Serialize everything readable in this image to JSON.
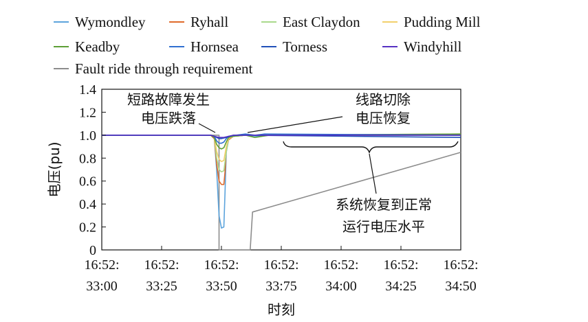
{
  "chart_data": {
    "type": "line",
    "title": "",
    "xlabel": "时刻",
    "ylabel": "电压(pu)",
    "ylim": [
      0,
      1.4
    ],
    "yticks": [
      "0",
      "0.2",
      "0.4",
      "0.6",
      "0.8",
      "1.0",
      "1.2",
      "1.4"
    ],
    "xlim": [
      0,
      1.5
    ],
    "xticks": [
      {
        "line1": "16:52:",
        "line2": "33:00",
        "pos": 0
      },
      {
        "line1": "16:52:",
        "line2": "33:25",
        "pos": 0.25
      },
      {
        "line1": "16:52:",
        "line2": "33:50",
        "pos": 0.5
      },
      {
        "line1": "16:52:",
        "line2": "33:75",
        "pos": 0.75
      },
      {
        "line1": "16:52:",
        "line2": "34:00",
        "pos": 1.0
      },
      {
        "line1": "16:52:",
        "line2": "34:25",
        "pos": 1.25
      },
      {
        "line1": "16:52:",
        "line2": "34:50",
        "pos": 1.5
      }
    ],
    "legend_position": "top",
    "series": [
      {
        "name": "Wymondley",
        "color": "#5BA3DC",
        "points": [
          [
            0,
            1.0
          ],
          [
            0.455,
            1.0
          ],
          [
            0.47,
            0.97
          ],
          [
            0.48,
            0.7
          ],
          [
            0.49,
            0.3
          ],
          [
            0.5,
            0.19
          ],
          [
            0.51,
            0.2
          ],
          [
            0.515,
            0.5
          ],
          [
            0.52,
            0.85
          ],
          [
            0.53,
            0.96
          ],
          [
            0.55,
            0.99
          ],
          [
            0.6,
            1.0
          ],
          [
            0.65,
            0.99
          ],
          [
            0.7,
            1.0
          ],
          [
            1.5,
            1.0
          ]
        ]
      },
      {
        "name": "Ryhall",
        "color": "#E06A2A",
        "points": [
          [
            0,
            1.0
          ],
          [
            0.455,
            1.0
          ],
          [
            0.47,
            0.97
          ],
          [
            0.48,
            0.75
          ],
          [
            0.49,
            0.6
          ],
          [
            0.5,
            0.57
          ],
          [
            0.51,
            0.57
          ],
          [
            0.515,
            0.68
          ],
          [
            0.52,
            0.88
          ],
          [
            0.53,
            0.96
          ],
          [
            0.55,
            0.99
          ],
          [
            0.6,
            1.0
          ],
          [
            1.5,
            1.0
          ]
        ]
      },
      {
        "name": "East Claydon",
        "color": "#A9D98B",
        "points": [
          [
            0,
            1.0
          ],
          [
            0.455,
            1.0
          ],
          [
            0.47,
            0.98
          ],
          [
            0.48,
            0.8
          ],
          [
            0.49,
            0.7
          ],
          [
            0.5,
            0.68
          ],
          [
            0.51,
            0.69
          ],
          [
            0.52,
            0.85
          ],
          [
            0.53,
            0.97
          ],
          [
            0.55,
            0.99
          ],
          [
            0.6,
            1.0
          ],
          [
            1.5,
            1.0
          ]
        ]
      },
      {
        "name": "Pudding Mill",
        "color": "#F2D06B",
        "points": [
          [
            0,
            1.0
          ],
          [
            0.455,
            1.0
          ],
          [
            0.47,
            0.98
          ],
          [
            0.48,
            0.86
          ],
          [
            0.49,
            0.79
          ],
          [
            0.5,
            0.77
          ],
          [
            0.51,
            0.78
          ],
          [
            0.52,
            0.9
          ],
          [
            0.53,
            0.97
          ],
          [
            0.55,
            0.99
          ],
          [
            0.6,
            1.0
          ],
          [
            1.5,
            1.01
          ]
        ]
      },
      {
        "name": "Keadby",
        "color": "#5C9E35",
        "points": [
          [
            0,
            1.0
          ],
          [
            0.455,
            1.0
          ],
          [
            0.47,
            0.98
          ],
          [
            0.48,
            0.92
          ],
          [
            0.49,
            0.89
          ],
          [
            0.5,
            0.88
          ],
          [
            0.51,
            0.89
          ],
          [
            0.52,
            0.94
          ],
          [
            0.53,
            0.98
          ],
          [
            0.55,
            0.99
          ],
          [
            0.6,
            1.0
          ],
          [
            0.64,
            0.98
          ],
          [
            0.7,
            1.0
          ],
          [
            1.5,
            1.01
          ]
        ]
      },
      {
        "name": "Hornsea",
        "color": "#2F6FD0",
        "points": [
          [
            0,
            1.0
          ],
          [
            0.455,
            1.0
          ],
          [
            0.47,
            0.99
          ],
          [
            0.48,
            0.95
          ],
          [
            0.49,
            0.93
          ],
          [
            0.5,
            0.93
          ],
          [
            0.51,
            0.94
          ],
          [
            0.52,
            0.97
          ],
          [
            0.53,
            0.99
          ],
          [
            0.56,
            1.0
          ],
          [
            0.6,
            1.01
          ],
          [
            0.64,
            1.0
          ],
          [
            0.68,
            1.01
          ],
          [
            1.5,
            1.0
          ]
        ]
      },
      {
        "name": "Torness",
        "color": "#1F4FB8",
        "points": [
          [
            0,
            1.0
          ],
          [
            0.455,
            1.0
          ],
          [
            0.47,
            0.99
          ],
          [
            0.49,
            0.97
          ],
          [
            0.5,
            0.97
          ],
          [
            0.52,
            0.98
          ],
          [
            0.55,
            1.0
          ],
          [
            0.6,
            1.0
          ],
          [
            1.5,
            0.98
          ]
        ]
      },
      {
        "name": "Windyhill",
        "color": "#5530C2",
        "points": [
          [
            0,
            1.0
          ],
          [
            0.455,
            1.0
          ],
          [
            0.47,
            0.99
          ],
          [
            0.49,
            0.98
          ],
          [
            0.51,
            0.98
          ],
          [
            0.53,
            0.99
          ],
          [
            0.55,
            1.0
          ],
          [
            1.5,
            1.0
          ]
        ]
      },
      {
        "name": "Fault ride through requirement",
        "color": "#8C8C8C",
        "points": [
          [
            0.0,
            1.0
          ],
          [
            0.49,
            1.0
          ],
          [
            0.49,
            0
          ],
          [
            0.62,
            0
          ],
          [
            0.63,
            0.33
          ],
          [
            1.5,
            0.85
          ]
        ]
      }
    ],
    "annotations": [
      {
        "text_lines": [
          "短路故障发生",
          "电压跌落"
        ]
      },
      {
        "text_lines": [
          "线路切除",
          "电压恢复"
        ]
      },
      {
        "text_lines": [
          "系统恢复到正常",
          "运行电压水平"
        ]
      }
    ]
  }
}
